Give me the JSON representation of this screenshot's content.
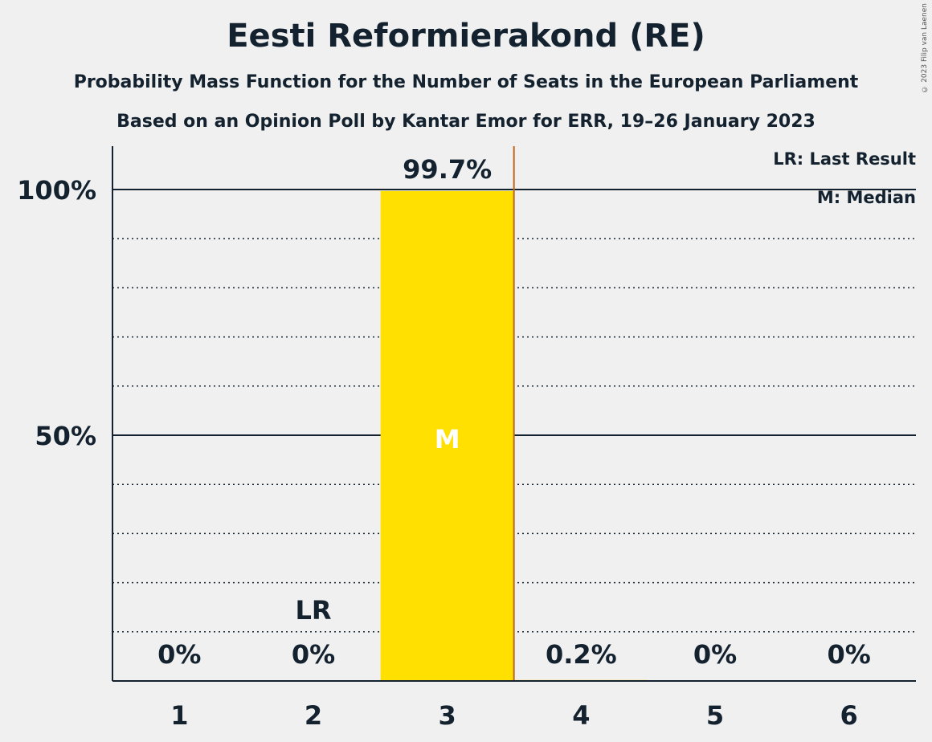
{
  "title": "Eesti Reformierakond (RE)",
  "subtitle": "Probability Mass Function for the Number of Seats in the European Parliament",
  "subtitle2": "Based on an Opinion Poll by Kantar Emor for ERR, 19–26 January 2023",
  "copyright": "© 2023 Filip van Laenen",
  "legend": {
    "last_result": "LR: Last Result",
    "median": "M: Median"
  },
  "colors": {
    "bar": "#ffe000",
    "median_line": "#c0651a",
    "text": "#13222e",
    "background": "#f0f0f0"
  },
  "chart_data": {
    "type": "bar",
    "categories": [
      "1",
      "2",
      "3",
      "4",
      "5",
      "6"
    ],
    "values": [
      0,
      0,
      99.7,
      0.2,
      0,
      0
    ],
    "data_labels": [
      "0%",
      "0%",
      "99.7%",
      "0.2%",
      "0%",
      "0%"
    ],
    "ylim": [
      0,
      109
    ],
    "yticks": [
      {
        "value": 50,
        "label": "50%"
      },
      {
        "value": 100,
        "label": "100%"
      }
    ],
    "minor_gridlines": [
      10,
      20,
      30,
      40,
      60,
      70,
      80,
      90
    ],
    "last_result": {
      "category": "2",
      "label": "LR"
    },
    "median": {
      "category": "3",
      "label": "M"
    },
    "median_line_after_category": "3"
  }
}
